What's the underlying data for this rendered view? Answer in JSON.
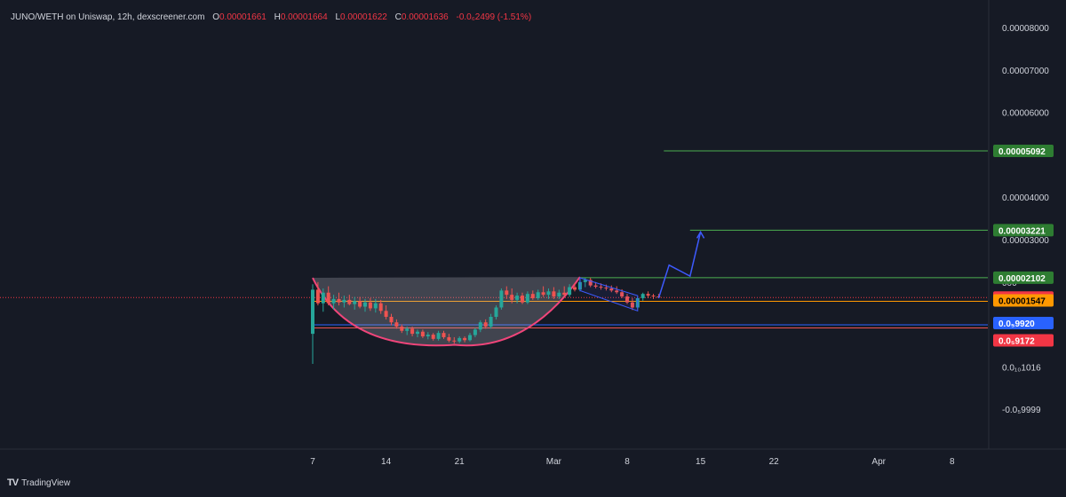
{
  "header": {
    "symbol": "JUNO/WETH on Uniswap, 12h, dexscreener.com",
    "o_label": "O",
    "o_value": "0.00001661",
    "h_label": "H",
    "h_value": "0.00001664",
    "l_label": "L",
    "l_value": "0.00001622",
    "c_label": "C",
    "c_value": "0.00001636",
    "change": "-0.0₆2499 (-1.51%)"
  },
  "watermark": {
    "brand": "TradingView",
    "icon": "tradingview-logo-icon"
  },
  "colors": {
    "background": "#161a25",
    "up": "#26a69a",
    "down": "#ef5350",
    "cup": "#f0457a",
    "channel": "#3d5afe",
    "target_line": "#4caf50",
    "current": "#f23645",
    "orange": "#ff9800",
    "blue_tag": "#2962ff"
  },
  "chart_data": {
    "type": "candlestick",
    "title": "JUNO/WETH on Uniswap, 12h, dexscreener.com",
    "x_axis": {
      "ticks": [
        "7",
        "14",
        "21",
        "Mar",
        "8",
        "15",
        "22",
        "Apr",
        "8"
      ],
      "tick_dates": [
        "2024-02-07",
        "2024-02-14",
        "2024-02-21",
        "2024-03-01",
        "2024-03-08",
        "2024-03-15",
        "2024-03-22",
        "2024-04-01",
        "2024-04-08"
      ]
    },
    "y_axis": {
      "ticks": [
        "0.00008000",
        "0.00007000",
        "0.00006000",
        "0.00004000",
        "0.00003000",
        "0.0₁₀1016",
        "-0.0₅9999"
      ],
      "tick_values": [
        8e-05,
        7e-05,
        6e-05,
        4e-05,
        3e-05,
        1.016e-10,
        -9.999e-06
      ],
      "range": [
        -1e-05,
        8.1e-05
      ],
      "partially_hidden_tick": "000"
    },
    "candles": [
      {
        "t": "2024-02-07T00",
        "o": 7.8e-06,
        "h": 1.95e-05,
        "l": 7e-07,
        "c": 1.82e-05
      },
      {
        "t": "2024-02-07T12",
        "o": 1.82e-05,
        "h": 2e-05,
        "l": 1.45e-05,
        "c": 1.5e-05
      },
      {
        "t": "2024-02-08T00",
        "o": 1.5e-05,
        "h": 1.85e-05,
        "l": 1.3e-05,
        "c": 1.75e-05
      },
      {
        "t": "2024-02-08T12",
        "o": 1.75e-05,
        "h": 1.9e-05,
        "l": 1.45e-05,
        "c": 1.5e-05
      },
      {
        "t": "2024-02-09T00",
        "o": 1.5e-05,
        "h": 1.7e-05,
        "l": 1.35e-05,
        "c": 1.6e-05
      },
      {
        "t": "2024-02-09T12",
        "o": 1.6e-05,
        "h": 1.75e-05,
        "l": 1.45e-05,
        "c": 1.52e-05
      },
      {
        "t": "2024-02-10T00",
        "o": 1.52e-05,
        "h": 1.68e-05,
        "l": 1.4e-05,
        "c": 1.58e-05
      },
      {
        "t": "2024-02-10T12",
        "o": 1.58e-05,
        "h": 1.7e-05,
        "l": 1.45e-05,
        "c": 1.48e-05
      },
      {
        "t": "2024-02-11T00",
        "o": 1.48e-05,
        "h": 1.65e-05,
        "l": 1.35e-05,
        "c": 1.55e-05
      },
      {
        "t": "2024-02-11T12",
        "o": 1.55e-05,
        "h": 1.65e-05,
        "l": 1.38e-05,
        "c": 1.42e-05
      },
      {
        "t": "2024-02-12T00",
        "o": 1.42e-05,
        "h": 1.6e-05,
        "l": 1.3e-05,
        "c": 1.52e-05
      },
      {
        "t": "2024-02-12T12",
        "o": 1.52e-05,
        "h": 1.62e-05,
        "l": 1.32e-05,
        "c": 1.38e-05
      },
      {
        "t": "2024-02-13T00",
        "o": 1.38e-05,
        "h": 1.6e-05,
        "l": 1.28e-05,
        "c": 1.5e-05
      },
      {
        "t": "2024-02-13T12",
        "o": 1.5e-05,
        "h": 1.58e-05,
        "l": 1.25e-05,
        "c": 1.32e-05
      },
      {
        "t": "2024-02-14T00",
        "o": 1.32e-05,
        "h": 1.45e-05,
        "l": 1.12e-05,
        "c": 1.18e-05
      },
      {
        "t": "2024-02-14T12",
        "o": 1.18e-05,
        "h": 1.25e-05,
        "l": 9.8e-06,
        "c": 1.05e-05
      },
      {
        "t": "2024-02-15T00",
        "o": 1.05e-05,
        "h": 1.12e-05,
        "l": 9e-06,
        "c": 9.5e-06
      },
      {
        "t": "2024-02-15T12",
        "o": 9.5e-06,
        "h": 1e-05,
        "l": 8e-06,
        "c": 8.5e-06
      },
      {
        "t": "2024-02-16T00",
        "o": 8.5e-06,
        "h": 9.5e-06,
        "l": 7.5e-06,
        "c": 9e-06
      },
      {
        "t": "2024-02-16T12",
        "o": 9e-06,
        "h": 9.5e-06,
        "l": 7.2e-06,
        "c": 7.8e-06
      },
      {
        "t": "2024-02-17T00",
        "o": 7.8e-06,
        "h": 8.8e-06,
        "l": 7e-06,
        "c": 8.3e-06
      },
      {
        "t": "2024-02-17T12",
        "o": 8.3e-06,
        "h": 8.8e-06,
        "l": 6.8e-06,
        "c": 7.2e-06
      },
      {
        "t": "2024-02-18T00",
        "o": 7.2e-06,
        "h": 8.2e-06,
        "l": 6.5e-06,
        "c": 7.6e-06
      },
      {
        "t": "2024-02-18T12",
        "o": 7.6e-06,
        "h": 8e-06,
        "l": 6.2e-06,
        "c": 6.6e-06
      },
      {
        "t": "2024-02-19T00",
        "o": 6.6e-06,
        "h": 8.5e-06,
        "l": 6.2e-06,
        "c": 8e-06
      },
      {
        "t": "2024-02-19T12",
        "o": 8e-06,
        "h": 8.5e-06,
        "l": 6.6e-06,
        "c": 7e-06
      },
      {
        "t": "2024-02-20T00",
        "o": 7e-06,
        "h": 7.8e-06,
        "l": 5.8e-06,
        "c": 6.2e-06
      },
      {
        "t": "2024-02-20T12",
        "o": 6.2e-06,
        "h": 7e-06,
        "l": 5.5e-06,
        "c": 6e-06
      },
      {
        "t": "2024-02-21T00",
        "o": 6e-06,
        "h": 7.2e-06,
        "l": 5.6e-06,
        "c": 6.8e-06
      },
      {
        "t": "2024-02-21T12",
        "o": 6.8e-06,
        "h": 7.2e-06,
        "l": 5.8e-06,
        "c": 6.3e-06
      },
      {
        "t": "2024-02-22T00",
        "o": 6.3e-06,
        "h": 8e-06,
        "l": 6e-06,
        "c": 7.5e-06
      },
      {
        "t": "2024-02-22T12",
        "o": 7.5e-06,
        "h": 9.2e-06,
        "l": 7e-06,
        "c": 8.8e-06
      },
      {
        "t": "2024-02-23T00",
        "o": 8.8e-06,
        "h": 1.1e-05,
        "l": 8.2e-06,
        "c": 1.05e-05
      },
      {
        "t": "2024-02-23T12",
        "o": 1.05e-05,
        "h": 1.12e-05,
        "l": 9e-06,
        "c": 9.5e-06
      },
      {
        "t": "2024-02-24T00",
        "o": 9.5e-06,
        "h": 1.25e-05,
        "l": 9e-06,
        "c": 1.18e-05
      },
      {
        "t": "2024-02-24T12",
        "o": 1.18e-05,
        "h": 1.45e-05,
        "l": 1.12e-05,
        "c": 1.4e-05
      },
      {
        "t": "2024-02-25T00",
        "o": 1.4e-05,
        "h": 1.85e-05,
        "l": 1.35e-05,
        "c": 1.8e-05
      },
      {
        "t": "2024-02-25T12",
        "o": 1.8e-05,
        "h": 1.9e-05,
        "l": 1.6e-05,
        "c": 1.7e-05
      },
      {
        "t": "2024-02-26T00",
        "o": 1.7e-05,
        "h": 1.85e-05,
        "l": 1.5e-05,
        "c": 1.58e-05
      },
      {
        "t": "2024-02-26T12",
        "o": 1.58e-05,
        "h": 1.75e-05,
        "l": 1.5e-05,
        "c": 1.68e-05
      },
      {
        "t": "2024-02-27T00",
        "o": 1.68e-05,
        "h": 1.75e-05,
        "l": 1.48e-05,
        "c": 1.52e-05
      },
      {
        "t": "2024-02-27T12",
        "o": 1.52e-05,
        "h": 1.78e-05,
        "l": 1.48e-05,
        "c": 1.72e-05
      },
      {
        "t": "2024-02-28T00",
        "o": 1.72e-05,
        "h": 1.8e-05,
        "l": 1.58e-05,
        "c": 1.62e-05
      },
      {
        "t": "2024-02-28T12",
        "o": 1.62e-05,
        "h": 1.82e-05,
        "l": 1.58e-05,
        "c": 1.76e-05
      },
      {
        "t": "2024-02-29T00",
        "o": 1.76e-05,
        "h": 1.9e-05,
        "l": 1.65e-05,
        "c": 1.7e-05
      },
      {
        "t": "2024-02-29T12",
        "o": 1.7e-05,
        "h": 1.85e-05,
        "l": 1.6e-05,
        "c": 1.78e-05
      },
      {
        "t": "2024-03-01T00",
        "o": 1.78e-05,
        "h": 1.88e-05,
        "l": 1.6e-05,
        "c": 1.66e-05
      },
      {
        "t": "2024-03-01T12",
        "o": 1.66e-05,
        "h": 1.82e-05,
        "l": 1.6e-05,
        "c": 1.75e-05
      },
      {
        "t": "2024-03-02T00",
        "o": 1.75e-05,
        "h": 1.9e-05,
        "l": 1.65e-05,
        "c": 1.7e-05
      },
      {
        "t": "2024-03-02T12",
        "o": 1.7e-05,
        "h": 1.95e-05,
        "l": 1.65e-05,
        "c": 1.88e-05
      },
      {
        "t": "2024-03-03T00",
        "o": 1.88e-05,
        "h": 1.98e-05,
        "l": 1.78e-05,
        "c": 1.82e-05
      },
      {
        "t": "2024-03-03T12",
        "o": 1.82e-05,
        "h": 2.08e-05,
        "l": 1.78e-05,
        "c": 2e-05
      },
      {
        "t": "2024-03-04T00",
        "o": 2e-05,
        "h": 2.1e-05,
        "l": 1.88e-05,
        "c": 2.05e-05
      },
      {
        "t": "2024-03-04T12",
        "o": 2.05e-05,
        "h": 2.1e-05,
        "l": 1.88e-05,
        "c": 1.92e-05
      },
      {
        "t": "2024-03-05T00",
        "o": 1.92e-05,
        "h": 2e-05,
        "l": 1.85e-05,
        "c": 1.89e-05
      },
      {
        "t": "2024-03-05T12",
        "o": 1.89e-05,
        "h": 1.97e-05,
        "l": 1.82e-05,
        "c": 1.87e-05
      },
      {
        "t": "2024-03-06T00",
        "o": 1.87e-05,
        "h": 1.94e-05,
        "l": 1.8e-05,
        "c": 1.85e-05
      },
      {
        "t": "2024-03-06T12",
        "o": 1.85e-05,
        "h": 1.92e-05,
        "l": 1.76e-05,
        "c": 1.8e-05
      },
      {
        "t": "2024-03-07T00",
        "o": 1.8e-05,
        "h": 1.9e-05,
        "l": 1.72e-05,
        "c": 1.76e-05
      },
      {
        "t": "2024-03-07T12",
        "o": 1.76e-05,
        "h": 1.83e-05,
        "l": 1.62e-05,
        "c": 1.66e-05
      },
      {
        "t": "2024-03-08T00",
        "o": 1.66e-05,
        "h": 1.72e-05,
        "l": 1.48e-05,
        "c": 1.52e-05
      },
      {
        "t": "2024-03-08T12",
        "o": 1.52e-05,
        "h": 1.62e-05,
        "l": 1.34e-05,
        "c": 1.4e-05
      },
      {
        "t": "2024-03-09T00",
        "o": 1.4e-05,
        "h": 1.66e-05,
        "l": 1.36e-05,
        "c": 1.62e-05
      },
      {
        "t": "2024-03-09T12",
        "o": 1.62e-05,
        "h": 1.75e-05,
        "l": 1.56e-05,
        "c": 1.72e-05
      },
      {
        "t": "2024-03-10T00",
        "o": 1.72e-05,
        "h": 1.78e-05,
        "l": 1.62e-05,
        "c": 1.68e-05
      },
      {
        "t": "2024-03-10T12",
        "o": 1.68e-05,
        "h": 1.72e-05,
        "l": 1.6e-05,
        "c": 1.66e-05
      },
      {
        "t": "2024-03-11T00",
        "o": 1.66e-05,
        "h": 1.72e-05,
        "l": 1.62e-05,
        "c": 1.64e-05
      }
    ],
    "price_levels": [
      {
        "value": 5.092e-05,
        "label": "0.00005092",
        "kind": "target"
      },
      {
        "value": 3.221e-05,
        "label": "0.00003221",
        "kind": "target"
      },
      {
        "value": 2.102e-05,
        "label": "0.00002102",
        "kind": "target"
      },
      {
        "value": 1.636e-05,
        "label": "0.00001636",
        "kind": "last-price"
      },
      {
        "value": 1.547e-05,
        "label": "0.00001547",
        "kind": "orange"
      },
      {
        "value": 9.92e-06,
        "label": "0.0₅9920",
        "kind": "blue"
      },
      {
        "value": 9.172e-06,
        "label": "0.0₅9172",
        "kind": "red"
      }
    ],
    "annotations": {
      "cup": {
        "type": "cup",
        "left": [
          "2024-02-07T00",
          2.1e-05
        ],
        "bottom": [
          "2024-02-20T12",
          5.2e-06
        ],
        "right": [
          "2024-03-03T12",
          2.12e-05
        ]
      },
      "flag_channel": {
        "upper": [
          [
            "2024-03-03T12",
            2.1e-05
          ],
          [
            "2024-03-09T00",
            1.68e-05
          ]
        ],
        "lower": [
          [
            "2024-03-03T12",
            1.8e-05
          ],
          [
            "2024-03-09T00",
            1.32e-05
          ]
        ]
      },
      "projection_arrow": [
        [
          "2024-03-11T00",
          1.62e-05
        ],
        [
          "2024-03-12T00",
          2.4e-05
        ],
        [
          "2024-03-14T00",
          2.14e-05
        ],
        [
          "2024-03-15T00",
          3.18e-05
        ]
      ]
    }
  }
}
